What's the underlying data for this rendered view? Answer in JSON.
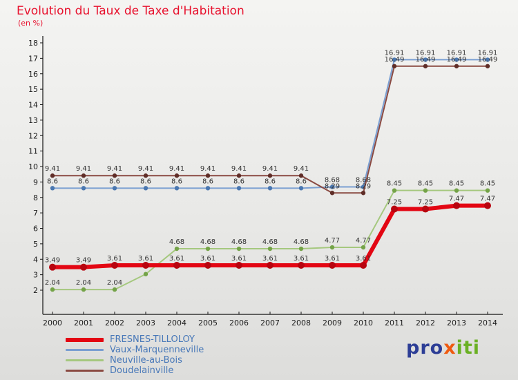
{
  "title": "Evolution du Taux de Taxe d'Habitation",
  "subtitle": "(en %)",
  "legend": {
    "items": [
      {
        "label": "FRESNES-TILLOLOY"
      },
      {
        "label": "Vaux-Marquenneville"
      },
      {
        "label": "Neuville-au-Bois"
      },
      {
        "label": "Doudelainville"
      }
    ]
  },
  "logo": {
    "part1": "pro",
    "part2": "x",
    "part3": "iti"
  },
  "chart_data": {
    "type": "line",
    "title": "Evolution du Taux de Taxe d'Habitation",
    "ylabel": "en %",
    "x": [
      2000,
      2001,
      2002,
      2003,
      2004,
      2005,
      2006,
      2007,
      2008,
      2009,
      2010,
      2011,
      2012,
      2013,
      2014
    ],
    "ylim": [
      2,
      18
    ],
    "yticks": [
      2,
      3,
      4,
      5,
      6,
      7,
      8,
      9,
      10,
      11,
      12,
      13,
      14,
      15,
      16,
      17,
      18
    ],
    "grid": false,
    "legend_position": "bottom-left",
    "series": [
      {
        "name": "FRESNES-TILLOLOY",
        "color": "#e30613",
        "point_color": "#b8040f",
        "values": [
          3.49,
          3.49,
          3.61,
          3.61,
          3.61,
          3.61,
          3.61,
          3.61,
          3.61,
          3.61,
          3.61,
          7.25,
          7.25,
          7.47,
          7.47
        ],
        "labels": [
          "3.49",
          "3.49",
          "3.61",
          "3.61",
          "3.61",
          "3.61",
          "3.61",
          "3.61",
          "3.61",
          "3.61",
          "3.61",
          "7.25",
          "7.25",
          "7.47",
          "7.47"
        ]
      },
      {
        "name": "Vaux-Marquenneville",
        "color": "#7a9fd2",
        "point_color": "#4a77b0",
        "values": [
          8.6,
          8.6,
          8.6,
          8.6,
          8.6,
          8.6,
          8.6,
          8.6,
          8.6,
          8.68,
          8.68,
          16.91,
          16.91,
          16.91,
          16.91
        ],
        "labels": [
          "8.6",
          "8.6",
          "8.6",
          "8.6",
          "8.6",
          "8.6",
          "8.6",
          "8.6",
          "8.6",
          "8.68",
          "8.68",
          "16.91",
          "16.91",
          "16.91",
          "16.91"
        ]
      },
      {
        "name": "Neuville-au-Bois",
        "color": "#a5c87e",
        "point_color": "#74a348",
        "values": [
          2.04,
          2.04,
          2.04,
          3.04,
          4.68,
          4.68,
          4.68,
          4.68,
          4.68,
          4.77,
          4.77,
          8.45,
          8.45,
          8.45,
          8.45
        ],
        "labels": [
          "2.04",
          "2.04",
          "2.04",
          "",
          "4.68",
          "4.68",
          "4.68",
          "4.68",
          "4.68",
          "4.77",
          "4.77",
          "8.45",
          "8.45",
          "8.45",
          "8.45"
        ]
      },
      {
        "name": "Doudelainville",
        "color": "#8a4a42",
        "point_color": "#5f2d27",
        "values": [
          9.41,
          9.41,
          9.41,
          9.41,
          9.41,
          9.41,
          9.41,
          9.41,
          9.41,
          8.29,
          8.29,
          16.49,
          16.49,
          16.49,
          16.49
        ],
        "labels": [
          "9.41",
          "9.41",
          "9.41",
          "9.41",
          "9.41",
          "9.41",
          "9.41",
          "9.41",
          "9.41",
          "8.29",
          "8.29",
          "16.49",
          "16.49",
          "16.49",
          "16.49"
        ]
      }
    ]
  }
}
